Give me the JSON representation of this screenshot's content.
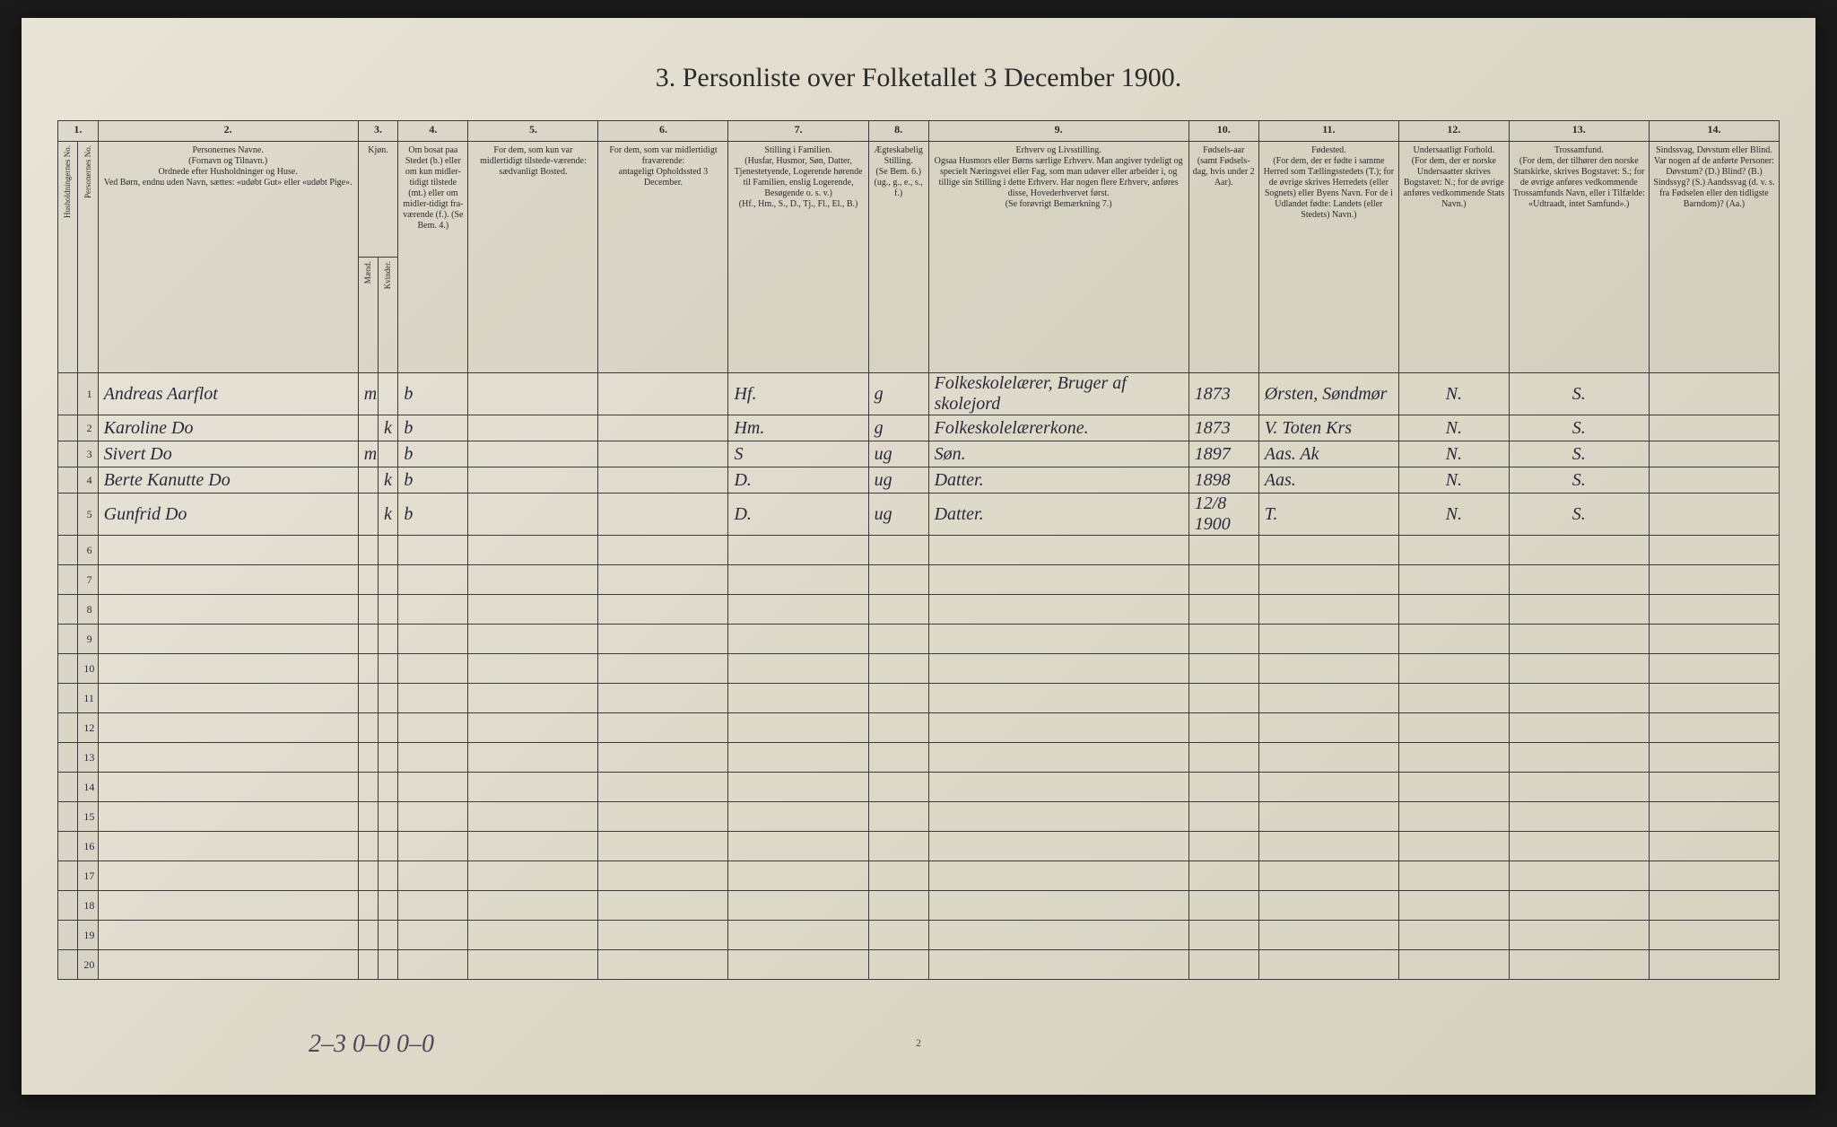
{
  "title": "3. Personliste over Folketallet 3 December 1900.",
  "columnNumbers": [
    "1.",
    "",
    "2.",
    "3.",
    "4.",
    "5.",
    "6.",
    "7.",
    "8.",
    "9.",
    "10.",
    "11.",
    "12.",
    "13.",
    "14."
  ],
  "headers": {
    "c1a": "Husholdningernes No.",
    "c1b": "Personernes No.",
    "c2": "Personernes Navne.\n(Fornavn og Tilnavn.)\nOrdnede efter Husholdninger og Huse.\nVed Børn, endnu uden Navn, sættes: «udøbt Gut» eller «udøbt Pige».",
    "c3": "Kjøn.",
    "c3a": "Mænd.",
    "c3b": "Kvinder.",
    "c4": "Om bosat paa Stedet (b.) eller om kun midler-tidigt tilstede (mt.) eller om midler-tidigt fra-værende (f.). (Se Bem. 4.)",
    "c5": "For dem, som kun var midlertidigt tilstede-værende:\nsædvanligt Bosted.",
    "c6": "For dem, som var midlertidigt fraværende:\nantageligt Opholdssted 3 December.",
    "c7": "Stilling i Familien.\n(Husfar, Husmor, Søn, Datter, Tjenestetyende, Logerende hørende til Familien, enslig Logerende, Besøgende o. s. v.)\n(Hf., Hm., S., D., Tj., Fl., El., B.)",
    "c8": "Ægteskabelig Stilling.\n(Se Bem. 6.)\n(ug., g., e., s., f.)",
    "c9": "Erhverv og Livsstilling.\nOgsaa Husmors eller Børns særlige Erhverv. Man angiver tydeligt og specielt Næringsvei eller Fag, som man udøver eller arbeider i, og tillige sin Stilling i dette Erhverv. Har nogen flere Erhverv, anføres disse, Hovederhvervet først.\n(Se forøvrigt Bemærkning 7.)",
    "c10": "Fødsels-aar\n(samt Fødsels-dag, hvis under 2 Aar).",
    "c11": "Fødested.\n(For dem, der er fødte i samme Herred som Tællingsstedets (T.); for de øvrige skrives Herredets (eller Sognets) eller Byens Navn. For de i Udlandet fødte: Landets (eller Stedets) Navn.)",
    "c12": "Undersaatligt Forhold.\n(For dem, der er norske Undersaatter skrives Bogstavet: N.; for de øvrige anføres vedkommende Stats Navn.)",
    "c13": "Trossamfund.\n(For dem, der tilhører den norske Statskirke, skrives Bogstavet: S.; for de øvrige anføres vedkommende Trossamfunds Navn, eller i Tilfælde: «Udtraadt, intet Samfund».)",
    "c14": "Sindssvag, Døvstum eller Blind.\nVar nogen af de anførte Personer: Døvstum? (D.) Blind? (B.) Sindssyg? (S.) Aandssvag (d. v. s. fra Fødselen eller den tidligste Barndom)? (Aa.)"
  },
  "rows": [
    {
      "n": "1",
      "name": "Andreas Aarflot",
      "sex_m": "m",
      "sex_k": "",
      "res": "b",
      "temp": "",
      "away": "",
      "fam": "Hf.",
      "mar": "g",
      "occ": "Folkeskolelærer, Bruger af skolejord",
      "year": "1873",
      "birthplace": "Ørsten, Søndmør",
      "nat": "N.",
      "rel": "S.",
      "dis": ""
    },
    {
      "n": "2",
      "name": "Karoline Do",
      "sex_m": "",
      "sex_k": "k",
      "res": "b",
      "temp": "",
      "away": "",
      "fam": "Hm.",
      "mar": "g",
      "occ": "Folkeskolelærerkone.",
      "year": "1873",
      "birthplace": "V. Toten Krs",
      "nat": "N.",
      "rel": "S.",
      "dis": ""
    },
    {
      "n": "3",
      "name": "Sivert Do",
      "sex_m": "m",
      "sex_k": "",
      "res": "b",
      "temp": "",
      "away": "",
      "fam": "S",
      "mar": "ug",
      "occ": "Søn.",
      "year": "1897",
      "birthplace": "Aas. Ak",
      "nat": "N.",
      "rel": "S.",
      "dis": ""
    },
    {
      "n": "4",
      "name": "Berte Kanutte Do",
      "sex_m": "",
      "sex_k": "k",
      "res": "b",
      "temp": "",
      "away": "",
      "fam": "D.",
      "mar": "ug",
      "occ": "Datter.",
      "year": "1898",
      "birthplace": "Aas.",
      "nat": "N.",
      "rel": "S.",
      "dis": ""
    },
    {
      "n": "5",
      "name": "Gunfrid Do",
      "sex_m": "",
      "sex_k": "k",
      "res": "b",
      "temp": "",
      "away": "",
      "fam": "D.",
      "mar": "ug",
      "occ": "Datter.",
      "year": "12/8 1900",
      "birthplace": "T.",
      "nat": "N.",
      "rel": "S.",
      "dis": ""
    }
  ],
  "emptyRows": [
    "6",
    "7",
    "8",
    "9",
    "10",
    "11",
    "12",
    "13",
    "14",
    "15",
    "16",
    "17",
    "18",
    "19",
    "20"
  ],
  "bottomNote": "2–3    0–0      0–0",
  "pageNum": "2",
  "colWidths": {
    "c1a": "20px",
    "c1b": "20px",
    "c2": "260px",
    "c3a": "20px",
    "c3b": "20px",
    "c4": "70px",
    "c5": "130px",
    "c6": "130px",
    "c7": "140px",
    "c8": "60px",
    "c9": "260px",
    "c10": "70px",
    "c11": "140px",
    "c12": "110px",
    "c13": "140px",
    "c14": "130px"
  }
}
